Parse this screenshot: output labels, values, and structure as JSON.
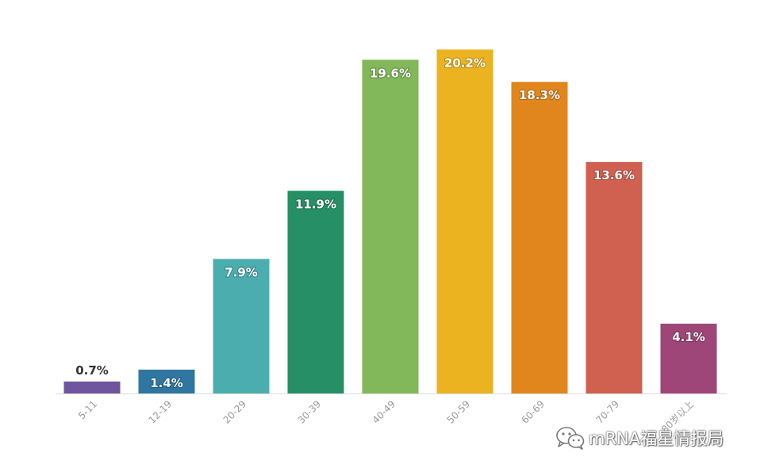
{
  "chart_data": {
    "type": "bar",
    "categories": [
      "5-11",
      "12-19",
      "20-29",
      "30-39",
      "40-49",
      "50-59",
      "60-69",
      "70-79",
      "80岁以上"
    ],
    "values": [
      0.7,
      1.4,
      7.9,
      11.9,
      19.6,
      20.2,
      18.3,
      13.6,
      4.1
    ],
    "value_labels": [
      "0.7%",
      "1.4%",
      "7.9%",
      "11.9%",
      "19.6%",
      "20.2%",
      "18.3%",
      "13.6%",
      "4.1%"
    ],
    "colors": [
      "#6e559e",
      "#2f76a1",
      "#4badae",
      "#268f66",
      "#82b75a",
      "#ecb321",
      "#e0861c",
      "#d06050",
      "#9e4678"
    ],
    "unit": "%",
    "ylim": [
      0,
      20.5
    ],
    "grid": false,
    "x_tick_rotation_deg": -45
  },
  "watermark": {
    "text": "mRNA福星情报局",
    "icon": "wechat-icon"
  },
  "axis_color": "#dddddd"
}
